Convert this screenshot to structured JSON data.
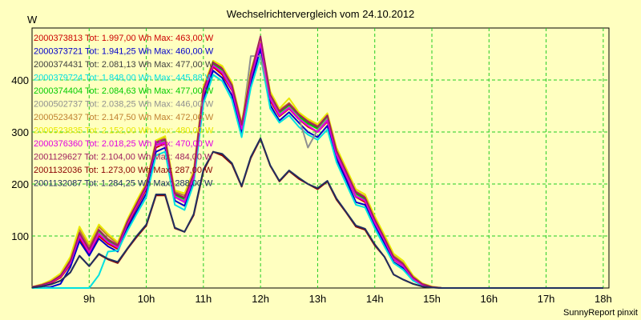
{
  "chart_data": {
    "type": "line",
    "title": "Wechselrichtervergleich vom 24.10.2012",
    "ylabel": "W",
    "xlabel": "",
    "credit": "SunnyReport pinxit",
    "xlim": [
      8.0,
      18.1
    ],
    "ylim": [
      0,
      500
    ],
    "grid": true,
    "x_ticks": [
      9,
      10,
      11,
      12,
      13,
      14,
      15,
      16,
      17,
      18
    ],
    "x_tick_labels": [
      "9h",
      "10h",
      "11h",
      "12h",
      "13h",
      "14h",
      "15h",
      "16h",
      "17h",
      "18h"
    ],
    "y_ticks": [
      100,
      200,
      300,
      400
    ],
    "y_tick_labels": [
      "100",
      "200",
      "300",
      "400"
    ],
    "x": [
      8.0,
      8.17,
      8.33,
      8.5,
      8.67,
      8.83,
      9.0,
      9.17,
      9.33,
      9.5,
      9.67,
      9.83,
      10.0,
      10.17,
      10.33,
      10.5,
      10.67,
      10.83,
      11.0,
      11.17,
      11.33,
      11.5,
      11.67,
      11.83,
      12.0,
      12.17,
      12.33,
      12.5,
      12.67,
      12.83,
      13.0,
      13.17,
      13.33,
      13.5,
      13.67,
      13.83,
      14.0,
      14.17,
      14.33,
      14.5,
      14.67,
      14.83,
      15.0,
      15.17,
      15.33,
      15.5,
      15.67,
      15.83,
      16.0,
      16.17,
      16.33,
      16.5,
      16.67,
      16.83,
      17.0,
      17.17,
      17.33,
      17.5,
      17.67,
      17.83,
      18.0
    ],
    "legend_placement": "top-left",
    "series": [
      {
        "name": "2000373813 Tot: 1.997,00 Wh Max: 463,00 W",
        "color": "#cc0000",
        "values": [
          2,
          5,
          10,
          20,
          45,
          95,
          65,
          100,
          85,
          75,
          120,
          155,
          190,
          270,
          278,
          175,
          165,
          210,
          370,
          425,
          410,
          380,
          305,
          400,
          463,
          360,
          330,
          345,
          325,
          310,
          300,
          320,
          255,
          215,
          175,
          165,
          125,
          90,
          55,
          42,
          18,
          6,
          2,
          0,
          0,
          0,
          0,
          0,
          0,
          0,
          0,
          0,
          0,
          0,
          0,
          0,
          0,
          0,
          0,
          0,
          0
        ],
        "pad": true
      },
      {
        "name": "2000373721 Tot: 1.941,25 Wh Max: 460,00 W",
        "color": "#0000cc",
        "values": [
          0,
          0,
          2,
          8,
          40,
          90,
          62,
          95,
          80,
          70,
          115,
          148,
          182,
          262,
          270,
          168,
          158,
          205,
          362,
          418,
          404,
          370,
          296,
          392,
          460,
          352,
          322,
          338,
          318,
          300,
          290,
          312,
          248,
          208,
          165,
          160,
          120,
          85,
          50,
          38,
          15,
          5,
          2,
          0,
          0,
          0,
          0,
          0,
          0,
          0,
          0,
          0,
          0,
          0,
          0,
          0,
          0,
          0,
          0,
          0,
          0
        ],
        "pad": true
      },
      {
        "name": "2000374431 Tot: 2.081,13 Wh Max: 477,00 W",
        "color": "#404040",
        "values": [
          2,
          6,
          12,
          24,
          52,
          105,
          72,
          110,
          92,
          82,
          128,
          162,
          198,
          280,
          285,
          180,
          172,
          218,
          380,
          432,
          420,
          388,
          312,
          410,
          477,
          370,
          338,
          352,
          332,
          318,
          308,
          330,
          262,
          222,
          182,
          172,
          130,
          95,
          60,
          45,
          20,
          7,
          2,
          0,
          0,
          0,
          0,
          0,
          0,
          0,
          0,
          0,
          0,
          0,
          0,
          0,
          0,
          0,
          0,
          0,
          0
        ],
        "pad": true
      },
      {
        "name": "2000379724 Tot: 1.848,00 Wh Max: 445,88 W",
        "color": "#00e0e0",
        "values": [
          0,
          0,
          0,
          0,
          0,
          0,
          0,
          25,
          70,
          72,
          110,
          142,
          175,
          255,
          262,
          160,
          150,
          200,
          355,
          410,
          398,
          362,
          290,
          385,
          446,
          345,
          318,
          332,
          310,
          295,
          285,
          305,
          242,
          200,
          160,
          155,
          115,
          80,
          48,
          35,
          14,
          5,
          2,
          0,
          0,
          0,
          0,
          0,
          0,
          0,
          0,
          0,
          0,
          0,
          0,
          0,
          0,
          0,
          0,
          0,
          0
        ],
        "pad": true
      },
      {
        "name": "2000374404 Tot: 2.084,63 Wh Max: 477,00 W",
        "color": "#00cc00",
        "values": [
          2,
          6,
          12,
          24,
          50,
          102,
          70,
          108,
          90,
          80,
          126,
          160,
          196,
          278,
          284,
          178,
          170,
          216,
          378,
          430,
          418,
          386,
          310,
          408,
          477,
          368,
          336,
          350,
          330,
          316,
          306,
          328,
          260,
          220,
          180,
          170,
          128,
          93,
          58,
          44,
          19,
          7,
          2,
          0,
          0,
          0,
          0,
          0,
          0,
          0,
          0,
          0,
          0,
          0,
          0,
          0,
          0,
          0,
          0,
          0,
          0
        ],
        "pad": true
      },
      {
        "name": "2000502737 Tot: 2.038,25 Wh Max: 446,00 W",
        "color": "#909090",
        "values": [
          2,
          6,
          12,
          22,
          48,
          100,
          70,
          106,
          88,
          78,
          124,
          158,
          194,
          276,
          282,
          176,
          168,
          214,
          376,
          428,
          416,
          384,
          308,
          446,
          446,
          366,
          334,
          348,
          328,
          270,
          304,
          326,
          258,
          218,
          178,
          168,
          126,
          92,
          57,
          43,
          19,
          7,
          2,
          0,
          0,
          0,
          0,
          0,
          0,
          0,
          0,
          0,
          0,
          0,
          0,
          0,
          0,
          0,
          0,
          0,
          0
        ],
        "pad": true
      },
      {
        "name": "2000523437 Tot: 2.147,50 Wh Max: 472,00 W",
        "color": "#c08030",
        "values": [
          2,
          7,
          14,
          26,
          58,
          112,
          80,
          118,
          100,
          85,
          130,
          165,
          200,
          282,
          290,
          185,
          178,
          222,
          385,
          435,
          425,
          392,
          316,
          415,
          472,
          375,
          342,
          356,
          336,
          322,
          312,
          334,
          266,
          226,
          186,
          176,
          134,
          98,
          62,
          48,
          22,
          8,
          2,
          0,
          0,
          0,
          0,
          0,
          0,
          0,
          0,
          0,
          0,
          0,
          0,
          0,
          0,
          0,
          0,
          0,
          0
        ],
        "pad": true
      },
      {
        "name": "2000523835 Tot: 2.152,00 Wh Max: 480,00 W",
        "color": "#e8e800",
        "values": [
          2,
          7,
          15,
          28,
          60,
          118,
          85,
          122,
          104,
          88,
          132,
          168,
          202,
          284,
          292,
          188,
          182,
          225,
          388,
          437,
          427,
          395,
          318,
          418,
          480,
          378,
          345,
          365,
          338,
          325,
          315,
          336,
          270,
          230,
          190,
          180,
          138,
          102,
          66,
          52,
          24,
          9,
          3,
          0,
          0,
          0,
          0,
          0,
          0,
          0,
          0,
          0,
          0,
          0,
          0,
          0,
          0,
          0,
          0,
          0,
          0
        ],
        "pad": true
      },
      {
        "name": "2000376360 Tot: 2.018,25 Wh Max: 470,00 W",
        "color": "#e000e0",
        "values": [
          2,
          5,
          11,
          22,
          48,
          100,
          68,
          104,
          88,
          78,
          124,
          158,
          194,
          275,
          280,
          175,
          165,
          212,
          375,
          428,
          414,
          382,
          306,
          405,
          470,
          364,
          332,
          346,
          326,
          312,
          300,
          322,
          256,
          216,
          176,
          168,
          126,
          92,
          56,
          42,
          18,
          6,
          2,
          0,
          0,
          0,
          0,
          0,
          0,
          0,
          0,
          0,
          0,
          0,
          0,
          0,
          0,
          0,
          0,
          0,
          0
        ],
        "pad": true
      },
      {
        "name": "2001129627 Tot: 2.104,00 Wh Max: 484,00 W",
        "color": "#a02060",
        "values": [
          2,
          6,
          12,
          24,
          52,
          106,
          74,
          112,
          94,
          82,
          128,
          162,
          198,
          280,
          286,
          182,
          174,
          220,
          382,
          434,
          422,
          390,
          314,
          412,
          484,
          372,
          340,
          354,
          334,
          320,
          310,
          332,
          264,
          224,
          184,
          174,
          132,
          96,
          60,
          46,
          21,
          8,
          2,
          0,
          0,
          0,
          0,
          0,
          0,
          0,
          0,
          0,
          0,
          0,
          0,
          0,
          0,
          0,
          0,
          0,
          0
        ],
        "pad": true
      },
      {
        "name": "2001132036 Tot: 1.273,00 Wh Max: 287,00 W",
        "color": "#8b0000",
        "values": [
          1,
          3,
          7,
          14,
          30,
          62,
          42,
          65,
          55,
          48,
          75,
          98,
          120,
          178,
          178,
          115,
          108,
          140,
          225,
          262,
          255,
          238,
          195,
          250,
          287,
          235,
          205,
          225,
          210,
          200,
          190,
          205,
          170,
          145,
          118,
          112,
          82,
          60,
          26,
          16,
          8,
          3,
          1,
          0,
          0,
          0,
          0,
          0,
          0,
          0,
          0,
          0,
          0,
          0,
          0,
          0,
          0,
          0,
          0,
          0,
          0
        ],
        "pad": true
      },
      {
        "name": "2001132087 Tot: 1.284,25 Wh Max: 288,00 W",
        "color": "#203060",
        "values": [
          1,
          3,
          7,
          14,
          30,
          62,
          42,
          66,
          56,
          50,
          76,
          100,
          122,
          180,
          180,
          116,
          108,
          142,
          228,
          262,
          258,
          240,
          196,
          252,
          288,
          236,
          206,
          226,
          212,
          200,
          192,
          206,
          172,
          146,
          120,
          114,
          84,
          60,
          26,
          16,
          8,
          3,
          1,
          0,
          0,
          0,
          0,
          0,
          0,
          0,
          0,
          0,
          0,
          0,
          0,
          0,
          0,
          0,
          0,
          0,
          0
        ],
        "pad": true
      }
    ]
  }
}
